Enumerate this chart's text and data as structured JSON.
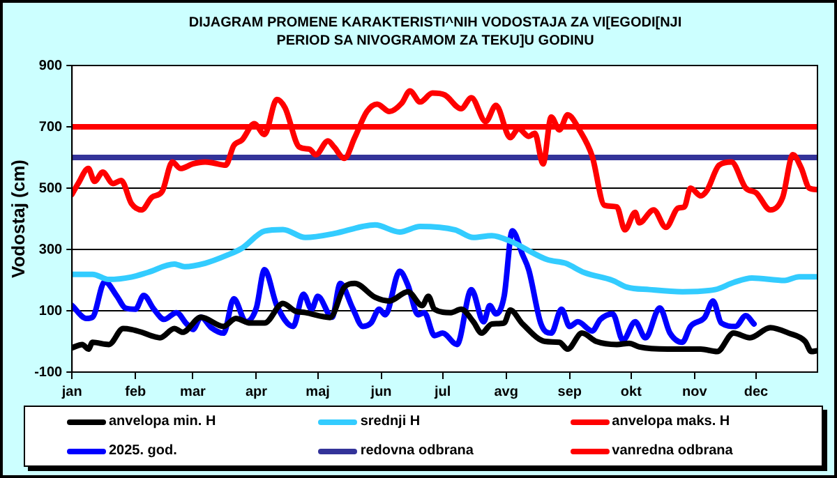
{
  "chart_data": {
    "type": "line",
    "title": "DIJAGRAM PROMENE KARAKTERISTI^NIH VODOSTAJA ZA VI[EGODI[NJI PERIOD SA NIVOGRAMOM ZA TEKU]U GODINU",
    "ylabel": "Vodostaj (cm)",
    "xlim": [
      "--01-01",
      "--12-31"
    ],
    "xticks": [
      {
        "value": "--01-01",
        "label": "jan"
      },
      {
        "value": "--02-01",
        "label": "feb"
      },
      {
        "value": "--03-01",
        "label": "mar"
      },
      {
        "value": "--04-01",
        "label": "apr"
      },
      {
        "value": "--05-01",
        "label": "maj"
      },
      {
        "value": "--06-01",
        "label": "jun"
      },
      {
        "value": "--07-01",
        "label": "jul"
      },
      {
        "value": "--08-01",
        "label": "avg"
      },
      {
        "value": "--09-01",
        "label": "sep"
      },
      {
        "value": "--10-01",
        "label": "okt"
      },
      {
        "value": "--11-01",
        "label": "nov"
      },
      {
        "value": "--12-01",
        "label": "dec"
      }
    ],
    "ylim": [
      -100,
      900
    ],
    "yticks": [
      -100,
      100,
      300,
      500,
      700,
      900
    ],
    "grid": "y",
    "legend": "bottom",
    "marker": "none",
    "line_style": "solid",
    "series": [
      {
        "name": "anvelopa min. H",
        "color": "#000000",
        "x": [
          "--01-01",
          "--01-06",
          "--01-09",
          "--01-11",
          "--01-19",
          "--01-26",
          "--01-30",
          "--02-04",
          "--02-09",
          "--02-13",
          "--02-20",
          "--02-24",
          "--03-05",
          "--03-16",
          "--03-22",
          "--03-29",
          "--04-05",
          "--04-14",
          "--04-20",
          "--04-25",
          "--05-07",
          "--05-14",
          "--05-19",
          "--05-29",
          "--06-05",
          "--06-14",
          "--06-21",
          "--06-24",
          "--06-27",
          "--07-05",
          "--07-10",
          "--07-16",
          "--07-20",
          "--07-25",
          "--07-31",
          "--08-03",
          "--08-09",
          "--08-20",
          "--08-27",
          "--08-31",
          "--09-07",
          "--09-14",
          "--09-24",
          "--09-30",
          "--10-05",
          "--10-19",
          "--11-04",
          "--11-12",
          "--11-20",
          "--11-28",
          "--12-08",
          "--12-17",
          "--12-25",
          "--12-28",
          "--12-31"
        ],
        "values": [
          -21,
          -10,
          -25,
          -3,
          -10,
          42,
          39,
          30,
          18,
          12,
          42,
          30,
          79,
          49,
          75,
          60,
          60,
          124,
          99,
          94,
          78,
          177,
          189,
          144,
          132,
          162,
          117,
          147,
          105,
          94,
          105,
          64,
          27,
          57,
          60,
          102,
          57,
          0,
          -3,
          -25,
          27,
          0,
          -10,
          -6,
          -18,
          -25,
          -25,
          -33,
          27,
          12,
          45,
          27,
          0,
          -33,
          -30
        ]
      },
      {
        "name": "srednji H",
        "color": "#33ccff",
        "x": [
          "--01-01",
          "--01-11",
          "--01-19",
          "--01-30",
          "--02-07",
          "--02-20",
          "--02-25",
          "--03-07",
          "--03-18",
          "--03-25",
          "--04-05",
          "--04-14",
          "--04-25",
          "--05-09",
          "--05-23",
          "--05-29",
          "--06-10",
          "--06-20",
          "--07-07",
          "--07-16",
          "--07-25",
          "--08-03",
          "--08-21",
          "--08-30",
          "--09-08",
          "--09-22",
          "--09-29",
          "--10-10",
          "--10-26",
          "--11-11",
          "--11-20",
          "--11-29",
          "--12-15",
          "--12-22",
          "--12-31"
        ],
        "values": [
          219,
          219,
          202,
          210,
          225,
          252,
          244,
          255,
          282,
          304,
          360,
          365,
          339,
          352,
          375,
          380,
          357,
          375,
          364,
          339,
          345,
          327,
          267,
          255,
          225,
          199,
          177,
          169,
          162,
          169,
          192,
          207,
          199,
          211,
          211
        ]
      },
      {
        "name": "anvelopa maks. H",
        "color": "#ff0000",
        "x": [
          "--01-01",
          "--01-04",
          "--01-09",
          "--01-12",
          "--01-16",
          "--01-21",
          "--01-25",
          "--01-30",
          "--02-04",
          "--02-09",
          "--02-14",
          "--02-19",
          "--02-23",
          "--03-01",
          "--03-07",
          "--03-11",
          "--03-17",
          "--03-21",
          "--03-25",
          "--03-31",
          "--04-05",
          "--04-11",
          "--04-15",
          "--04-22",
          "--04-27",
          "--04-30",
          "--05-06",
          "--05-09",
          "--05-14",
          "--05-19",
          "--05-25",
          "--05-30",
          "--06-05",
          "--06-11",
          "--06-15",
          "--06-20",
          "--06-26",
          "--07-02",
          "--07-10",
          "--07-15",
          "--07-22",
          "--07-27",
          "--08-03",
          "--08-07",
          "--08-12",
          "--08-15",
          "--08-19",
          "--08-23",
          "--08-27",
          "--08-31",
          "--09-06",
          "--09-12",
          "--09-18",
          "--09-24",
          "--09-28",
          "--10-03",
          "--10-05",
          "--10-12",
          "--10-18",
          "--10-24",
          "--10-27",
          "--10-30",
          "--11-04",
          "--11-07",
          "--11-13",
          "--11-19",
          "--11-26",
          "--12-01",
          "--12-08",
          "--12-14",
          "--12-19",
          "--12-23",
          "--12-27",
          "--12-31"
        ],
        "values": [
          480,
          515,
          564,
          522,
          552,
          515,
          525,
          450,
          429,
          470,
          489,
          585,
          564,
          579,
          585,
          582,
          575,
          639,
          657,
          710,
          675,
          789,
          762,
          634,
          627,
          609,
          654,
          634,
          597,
          664,
          750,
          774,
          750,
          777,
          817,
          781,
          810,
          804,
          759,
          795,
          717,
          770,
          665,
          694,
          669,
          679,
          579,
          732,
          690,
          739,
          687,
          604,
          444,
          439,
          364,
          421,
          387,
          429,
          372,
          435,
          439,
          500,
          475,
          492,
          575,
          585,
          500,
          485,
          429,
          470,
          609,
          567,
          500,
          495
        ]
      },
      {
        "name": "2025. god.",
        "color": "#0000ff",
        "x": [
          "--01-01",
          "--01-08",
          "--01-11",
          "--01-17",
          "--01-23",
          "--01-27",
          "--02-01",
          "--02-05",
          "--02-10",
          "--02-15",
          "--02-21",
          "--02-26",
          "--03-01",
          "--03-05",
          "--03-10",
          "--03-16",
          "--03-21",
          "--03-27",
          "--04-01",
          "--04-05",
          "--04-11",
          "--04-19",
          "--04-24",
          "--04-28",
          "--05-01",
          "--05-08",
          "--05-12",
          "--05-18",
          "--05-23",
          "--05-27",
          "--05-31",
          "--06-03",
          "--06-10",
          "--06-14",
          "--06-19",
          "--06-22",
          "--06-27",
          "--07-01",
          "--07-08",
          "--07-15",
          "--07-21",
          "--07-24",
          "--07-27",
          "--07-31",
          "--08-04",
          "--08-09",
          "--08-12",
          "--08-18",
          "--08-23",
          "--08-28",
          "--09-01",
          "--09-05",
          "--09-12",
          "--09-16",
          "--09-22",
          "--09-27",
          "--10-03",
          "--10-08",
          "--10-15",
          "--10-20",
          "--10-26",
          "--10-30",
          "--11-06",
          "--11-10",
          "--11-14",
          "--11-21",
          "--11-26",
          "--11-30"
        ],
        "values": [
          117,
          75,
          79,
          195,
          147,
          109,
          105,
          150,
          105,
          72,
          94,
          57,
          39,
          79,
          45,
          27,
          139,
          64,
          109,
          234,
          117,
          49,
          154,
          105,
          147,
          79,
          189,
          109,
          49,
          60,
          105,
          87,
          229,
          184,
          87,
          94,
          19,
          27,
          -10,
          169,
          64,
          117,
          90,
          147,
          361,
          283,
          234,
          57,
          27,
          105,
          49,
          64,
          34,
          72,
          90,
          4,
          64,
          12,
          109,
          27,
          -3,
          49,
          79,
          132,
          60,
          49,
          84,
          57
        ]
      }
    ],
    "ref_lines": [
      {
        "axis": "y",
        "value": 600,
        "label": "redovna odbrana",
        "color": "#333399"
      },
      {
        "axis": "y",
        "value": 700,
        "label": "vanredna odbrana",
        "color": "#ff0000"
      }
    ]
  }
}
